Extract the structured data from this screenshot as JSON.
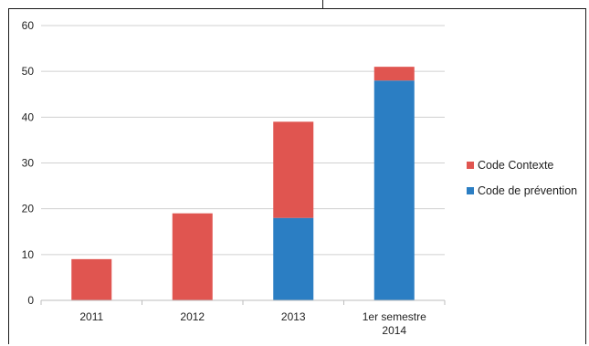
{
  "chart_data": {
    "type": "bar",
    "stacked": true,
    "title": "",
    "xlabel": "",
    "ylabel": "",
    "ylim": [
      0,
      60
    ],
    "yticks": [
      0,
      10,
      20,
      30,
      40,
      50,
      60
    ],
    "grid": true,
    "legend_position": "right",
    "categories": [
      [
        "2011"
      ],
      [
        "2012"
      ],
      [
        "2013"
      ],
      [
        "1er semestre",
        "2014"
      ]
    ],
    "series": [
      {
        "name": "Code de prévention",
        "color": "#2b7ec3",
        "values": [
          0,
          0,
          18,
          48
        ]
      },
      {
        "name": "Code Contexte",
        "color": "#e05550",
        "values": [
          9,
          19,
          21,
          3
        ]
      }
    ],
    "legend_order": [
      1,
      0
    ]
  }
}
